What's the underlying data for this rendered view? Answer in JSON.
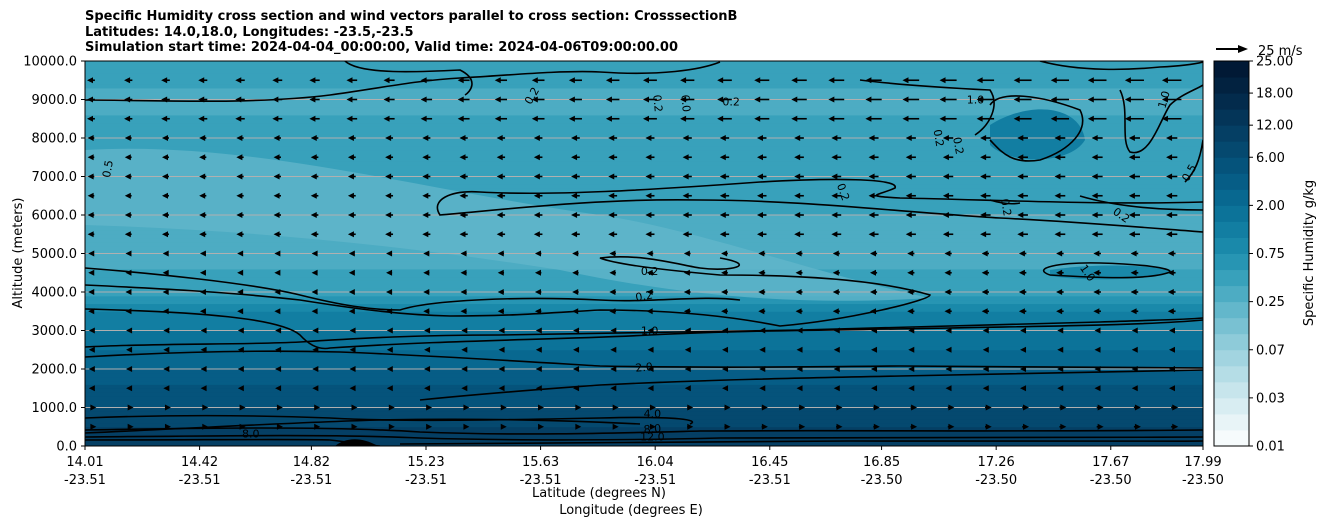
{
  "title_lines": [
    "Specific Humidity cross section and wind vectors parallel to cross section: CrosssectionB",
    "Latitudes: 14.0,18.0, Longitudes: -23.5,-23.5",
    "Simulation start time: 2024-04-04_00:00:00, Valid time: 2024-04-06T09:00:00.00"
  ],
  "chart_data": {
    "type": "heatmap",
    "ylabel": "Altitude (meters)",
    "xlabel_lines": [
      "Latitude (degrees N)",
      "Longitude (degrees E)"
    ],
    "ylim": [
      0,
      10000
    ],
    "y_ticks": [
      0,
      1000,
      2000,
      3000,
      4000,
      5000,
      6000,
      7000,
      8000,
      9000,
      10000
    ],
    "y_tick_labels": [
      "0.0",
      "1000.0",
      "2000.0",
      "3000.0",
      "4000.0",
      "5000.0",
      "6000.0",
      "7000.0",
      "8000.0",
      "9000.0",
      "10000.0"
    ],
    "grid_y": true,
    "x_ticks": [
      {
        "lat": "14.01",
        "lon": "-23.51"
      },
      {
        "lat": "14.42",
        "lon": "-23.51"
      },
      {
        "lat": "14.82",
        "lon": "-23.51"
      },
      {
        "lat": "15.23",
        "lon": "-23.51"
      },
      {
        "lat": "15.63",
        "lon": "-23.51"
      },
      {
        "lat": "16.04",
        "lon": "-23.51"
      },
      {
        "lat": "16.45",
        "lon": "-23.51"
      },
      {
        "lat": "16.85",
        "lon": "-23.50"
      },
      {
        "lat": "17.26",
        "lon": "-23.50"
      },
      {
        "lat": "17.67",
        "lon": "-23.50"
      },
      {
        "lat": "17.99",
        "lon": "-23.50"
      }
    ],
    "x_fraction": [
      0,
      0.1025,
      0.2025,
      0.305,
      0.4075,
      0.51,
      0.6125,
      0.7125,
      0.815,
      0.9175,
      1.0
    ],
    "colorbar": {
      "label": "Specific Humidity g/kg",
      "levels": [
        0.01,
        0.015,
        0.02,
        0.03,
        0.04,
        0.05,
        0.07,
        0.1,
        0.15,
        0.25,
        0.35,
        0.5,
        0.75,
        1.0,
        1.5,
        2.0,
        3.0,
        4.0,
        6.0,
        8.0,
        12.0,
        15.0,
        18.0,
        22.0,
        25.0
      ],
      "tick_labels": [
        "0.01",
        "0.03",
        "0.07",
        "0.25",
        "0.75",
        "2.00",
        "6.00",
        "12.00",
        "18.00",
        "25.00"
      ],
      "tick_level_index": [
        0,
        3,
        6,
        9,
        12,
        15,
        18,
        20,
        22,
        24
      ],
      "colors": [
        "#f6fbfc",
        "#e8f4f7",
        "#d8edf2",
        "#c7e5ec",
        "#b5dde6",
        "#a2d4e0",
        "#8ecbd9",
        "#79c1d2",
        "#63b7cb",
        "#4dacc3",
        "#38a1bb",
        "#2795b3",
        "#1a89aa",
        "#127ea2",
        "#0c7399",
        "#086890",
        "#065d86",
        "#05537b",
        "#05496f",
        "#053f64",
        "#043558",
        "#032b4c",
        "#022240",
        "#011935"
      ]
    },
    "quiver_key": {
      "label": "25 m/s",
      "speed": 25
    },
    "humidity_profile": [
      {
        "alt": 0,
        "q": 12.0
      },
      {
        "alt": 500,
        "q": 8.0
      },
      {
        "alt": 1000,
        "q": 6.0
      },
      {
        "alt": 1500,
        "q": 4.5
      },
      {
        "alt": 2000,
        "q": 3.0
      },
      {
        "alt": 2500,
        "q": 2.0
      },
      {
        "alt": 3000,
        "q": 1.5
      },
      {
        "alt": 3500,
        "q": 1.0
      },
      {
        "alt": 4000,
        "q": 0.45
      },
      {
        "alt": 5000,
        "q": 0.3
      },
      {
        "alt": 6000,
        "q": 0.35
      },
      {
        "alt": 7000,
        "q": 0.5
      },
      {
        "alt": 8000,
        "q": 0.45
      },
      {
        "alt": 9000,
        "q": 0.3
      },
      {
        "alt": 10000,
        "q": 0.5
      }
    ],
    "contour_labels": [
      {
        "text": "0.2",
        "lat": 15.6,
        "alt": 9100,
        "rot": -60
      },
      {
        "text": "0.5",
        "lat": 14.09,
        "alt": 7200,
        "rot": -80
      },
      {
        "text": "0.2",
        "lat": 16.05,
        "alt": 8900,
        "rot": 85
      },
      {
        "text": "0.0",
        "lat": 16.15,
        "alt": 8900,
        "rot": 85
      },
      {
        "text": "0.2",
        "lat": 16.31,
        "alt": 8950,
        "rot": 0
      },
      {
        "text": "1.0",
        "lat": 17.18,
        "alt": 9000,
        "rot": 0
      },
      {
        "text": "1.0",
        "lat": 17.85,
        "alt": 9000,
        "rot": -75
      },
      {
        "text": "0.2",
        "lat": 17.05,
        "alt": 8000,
        "rot": 80
      },
      {
        "text": "0.2",
        "lat": 17.12,
        "alt": 7800,
        "rot": 80
      },
      {
        "text": "0.2",
        "lat": 16.71,
        "alt": 6600,
        "rot": 70
      },
      {
        "text": "0.5",
        "lat": 17.94,
        "alt": 7100,
        "rot": -60
      },
      {
        "text": "0.2",
        "lat": 17.29,
        "alt": 6200,
        "rot": 80
      },
      {
        "text": "0.2",
        "lat": 17.7,
        "alt": 6000,
        "rot": 35
      },
      {
        "text": "1.0",
        "lat": 17.58,
        "alt": 4500,
        "rot": 55
      },
      {
        "text": "0.2",
        "lat": 16.02,
        "alt": 4550,
        "rot": 0
      },
      {
        "text": "0.2",
        "lat": 16.0,
        "alt": 3900,
        "rot": -10
      },
      {
        "text": "1.0",
        "lat": 16.02,
        "alt": 3000,
        "rot": 0
      },
      {
        "text": "2.0",
        "lat": 16.0,
        "alt": 2050,
        "rot": -5
      },
      {
        "text": "4.0",
        "lat": 16.03,
        "alt": 850,
        "rot": 0
      },
      {
        "text": "8.0",
        "lat": 16.03,
        "alt": 450,
        "rot": -5
      },
      {
        "text": "12.0",
        "lat": 16.03,
        "alt": 250,
        "rot": 0
      },
      {
        "text": "8.0",
        "lat": 14.6,
        "alt": 320,
        "rot": 0
      }
    ]
  }
}
